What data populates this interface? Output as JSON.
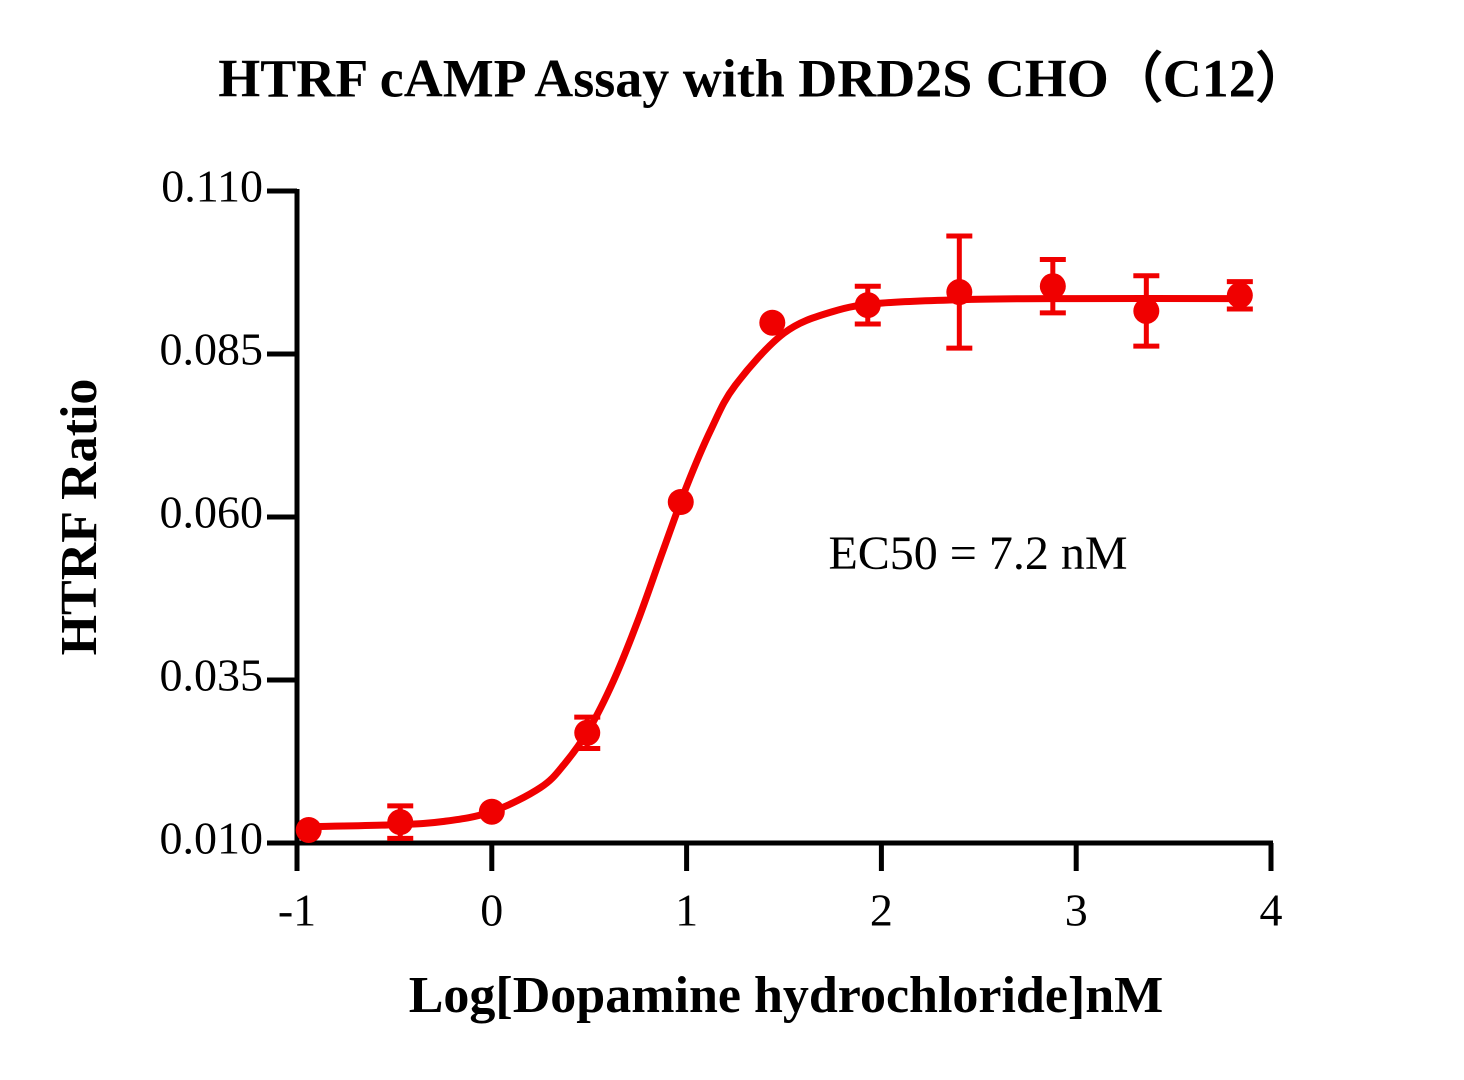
{
  "chart_data": {
    "type": "scatter",
    "title": "HTRF cAMP Assay with DRD2S CHO（C12）",
    "x_label": "Log[Dopamine hydrochloride]nM",
    "y_label": "HTRF Ratio",
    "annotation": "EC50 = 7.2 nM",
    "color": "#f00000",
    "x": [
      -0.94,
      -0.47,
      0.0,
      0.49,
      0.97,
      1.44,
      1.93,
      2.4,
      2.88,
      3.36,
      3.84
    ],
    "values": [
      0.012,
      0.0132,
      0.0148,
      0.0269,
      0.0623,
      0.0898,
      0.0925,
      0.0945,
      0.0954,
      0.0916,
      0.094
    ],
    "errors": [
      null,
      0.0025,
      null,
      0.0024,
      null,
      null,
      0.0029,
      0.0086,
      0.0041,
      0.0054,
      0.0021
    ],
    "fit": {
      "x": [
        -0.94,
        -0.5,
        -0.25,
        0.0,
        0.25,
        0.375,
        0.5,
        0.625,
        0.75,
        0.875,
        1.0,
        1.125,
        1.25,
        1.5,
        1.75,
        2.0,
        2.5,
        3.0,
        3.84
      ],
      "values": [
        0.0125,
        0.0128,
        0.0133,
        0.0148,
        0.0185,
        0.0222,
        0.0275,
        0.0349,
        0.0441,
        0.0545,
        0.0647,
        0.0734,
        0.0802,
        0.0882,
        0.0915,
        0.0928,
        0.0934,
        0.0935,
        0.0935
      ]
    },
    "xlim": [
      -1,
      4
    ],
    "xticks": [
      -1,
      0,
      1,
      2,
      3,
      4
    ],
    "ylim": [
      0.01,
      0.11
    ],
    "yticks": [
      {
        "value": 0.01,
        "label": "0.010"
      },
      {
        "value": 0.035,
        "label": "0.035"
      },
      {
        "value": 0.06,
        "label": "0.060"
      },
      {
        "value": 0.085,
        "label": "0.085"
      },
      {
        "value": 0.11,
        "label": "0.110"
      }
    ]
  }
}
